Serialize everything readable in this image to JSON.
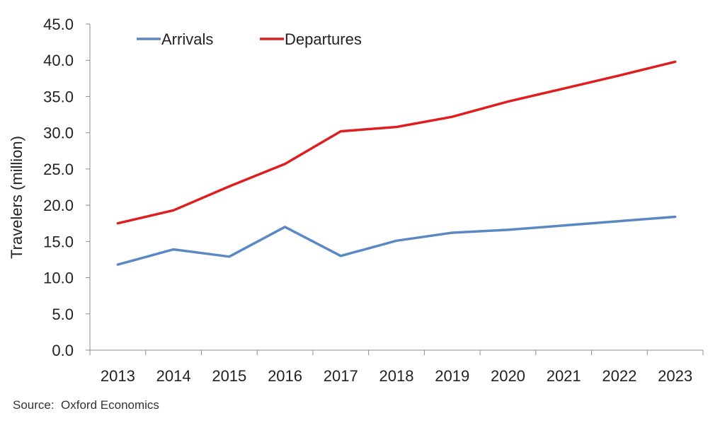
{
  "chart_data": {
    "type": "line",
    "x": [
      "2013",
      "2014",
      "2015",
      "2016",
      "2017",
      "2018",
      "2019",
      "2020",
      "2021",
      "2022",
      "2023"
    ],
    "series": [
      {
        "name": "Arrivals",
        "color": "#5b87c4",
        "values": [
          11.8,
          13.9,
          12.9,
          17.0,
          13.0,
          15.1,
          16.2,
          16.6,
          17.2,
          17.8,
          18.4
        ]
      },
      {
        "name": "Departures",
        "color": "#dd1f1f",
        "values": [
          17.5,
          19.3,
          22.6,
          25.7,
          30.2,
          30.8,
          32.2,
          34.3,
          36.1,
          37.9,
          39.8
        ]
      }
    ],
    "ylabel": "Travelers (million)",
    "ylim": [
      0,
      45
    ],
    "yticks": [
      "0.0",
      "5.0",
      "10.0",
      "15.0",
      "20.0",
      "25.0",
      "30.0",
      "35.0",
      "40.0",
      "45.0"
    ],
    "grid": false,
    "legend_position": "top-left"
  },
  "source_text": "Source:  Oxford Economics"
}
